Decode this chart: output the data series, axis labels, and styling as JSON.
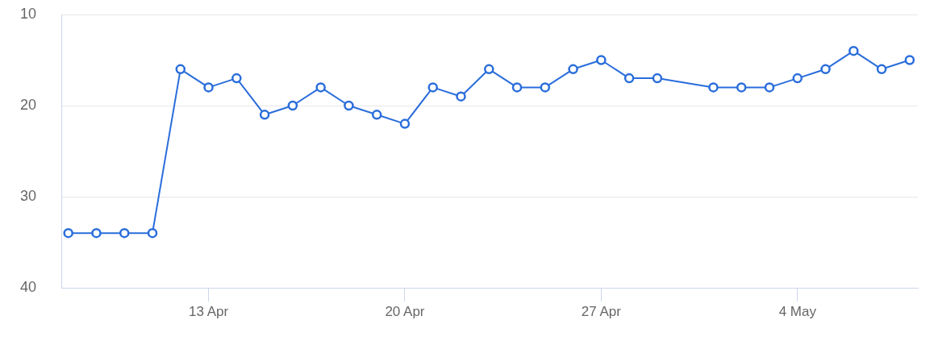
{
  "chart_data": {
    "type": "line",
    "x": [
      "--04-08",
      "--04-09",
      "--04-10",
      "--04-11",
      "--04-12",
      "--04-13",
      "--04-14",
      "--04-15",
      "--04-16",
      "--04-17",
      "--04-18",
      "--04-19",
      "--04-20",
      "--04-21",
      "--04-22",
      "--04-23",
      "--04-24",
      "--04-25",
      "--04-26",
      "--04-27",
      "--04-28",
      "--04-29",
      "--05-01",
      "--05-02",
      "--05-03",
      "--05-04",
      "--05-05",
      "--05-06",
      "--05-07",
      "--05-08"
    ],
    "values": [
      34,
      34,
      34,
      34,
      16,
      18,
      17,
      21,
      20,
      18,
      20,
      21,
      22,
      18,
      19,
      16,
      18,
      18,
      16,
      15,
      17,
      17,
      18,
      18,
      18,
      17,
      16,
      14,
      16,
      15
    ],
    "color": "#2a6ddb",
    "xlim": [
      "--04-07T18:00",
      "--05-08T07:00"
    ],
    "xticks": [
      {
        "value": "--04-13",
        "label": "13 Apr"
      },
      {
        "value": "--04-20",
        "label": "20 Apr"
      },
      {
        "value": "--04-27",
        "label": "27 Apr"
      },
      {
        "value": "--05-04",
        "label": "4 May"
      }
    ],
    "ylim": [
      40,
      10
    ],
    "yticks": [
      10,
      20,
      30,
      40
    ],
    "grid": "y",
    "marker": "circle",
    "line_style": "solid"
  }
}
